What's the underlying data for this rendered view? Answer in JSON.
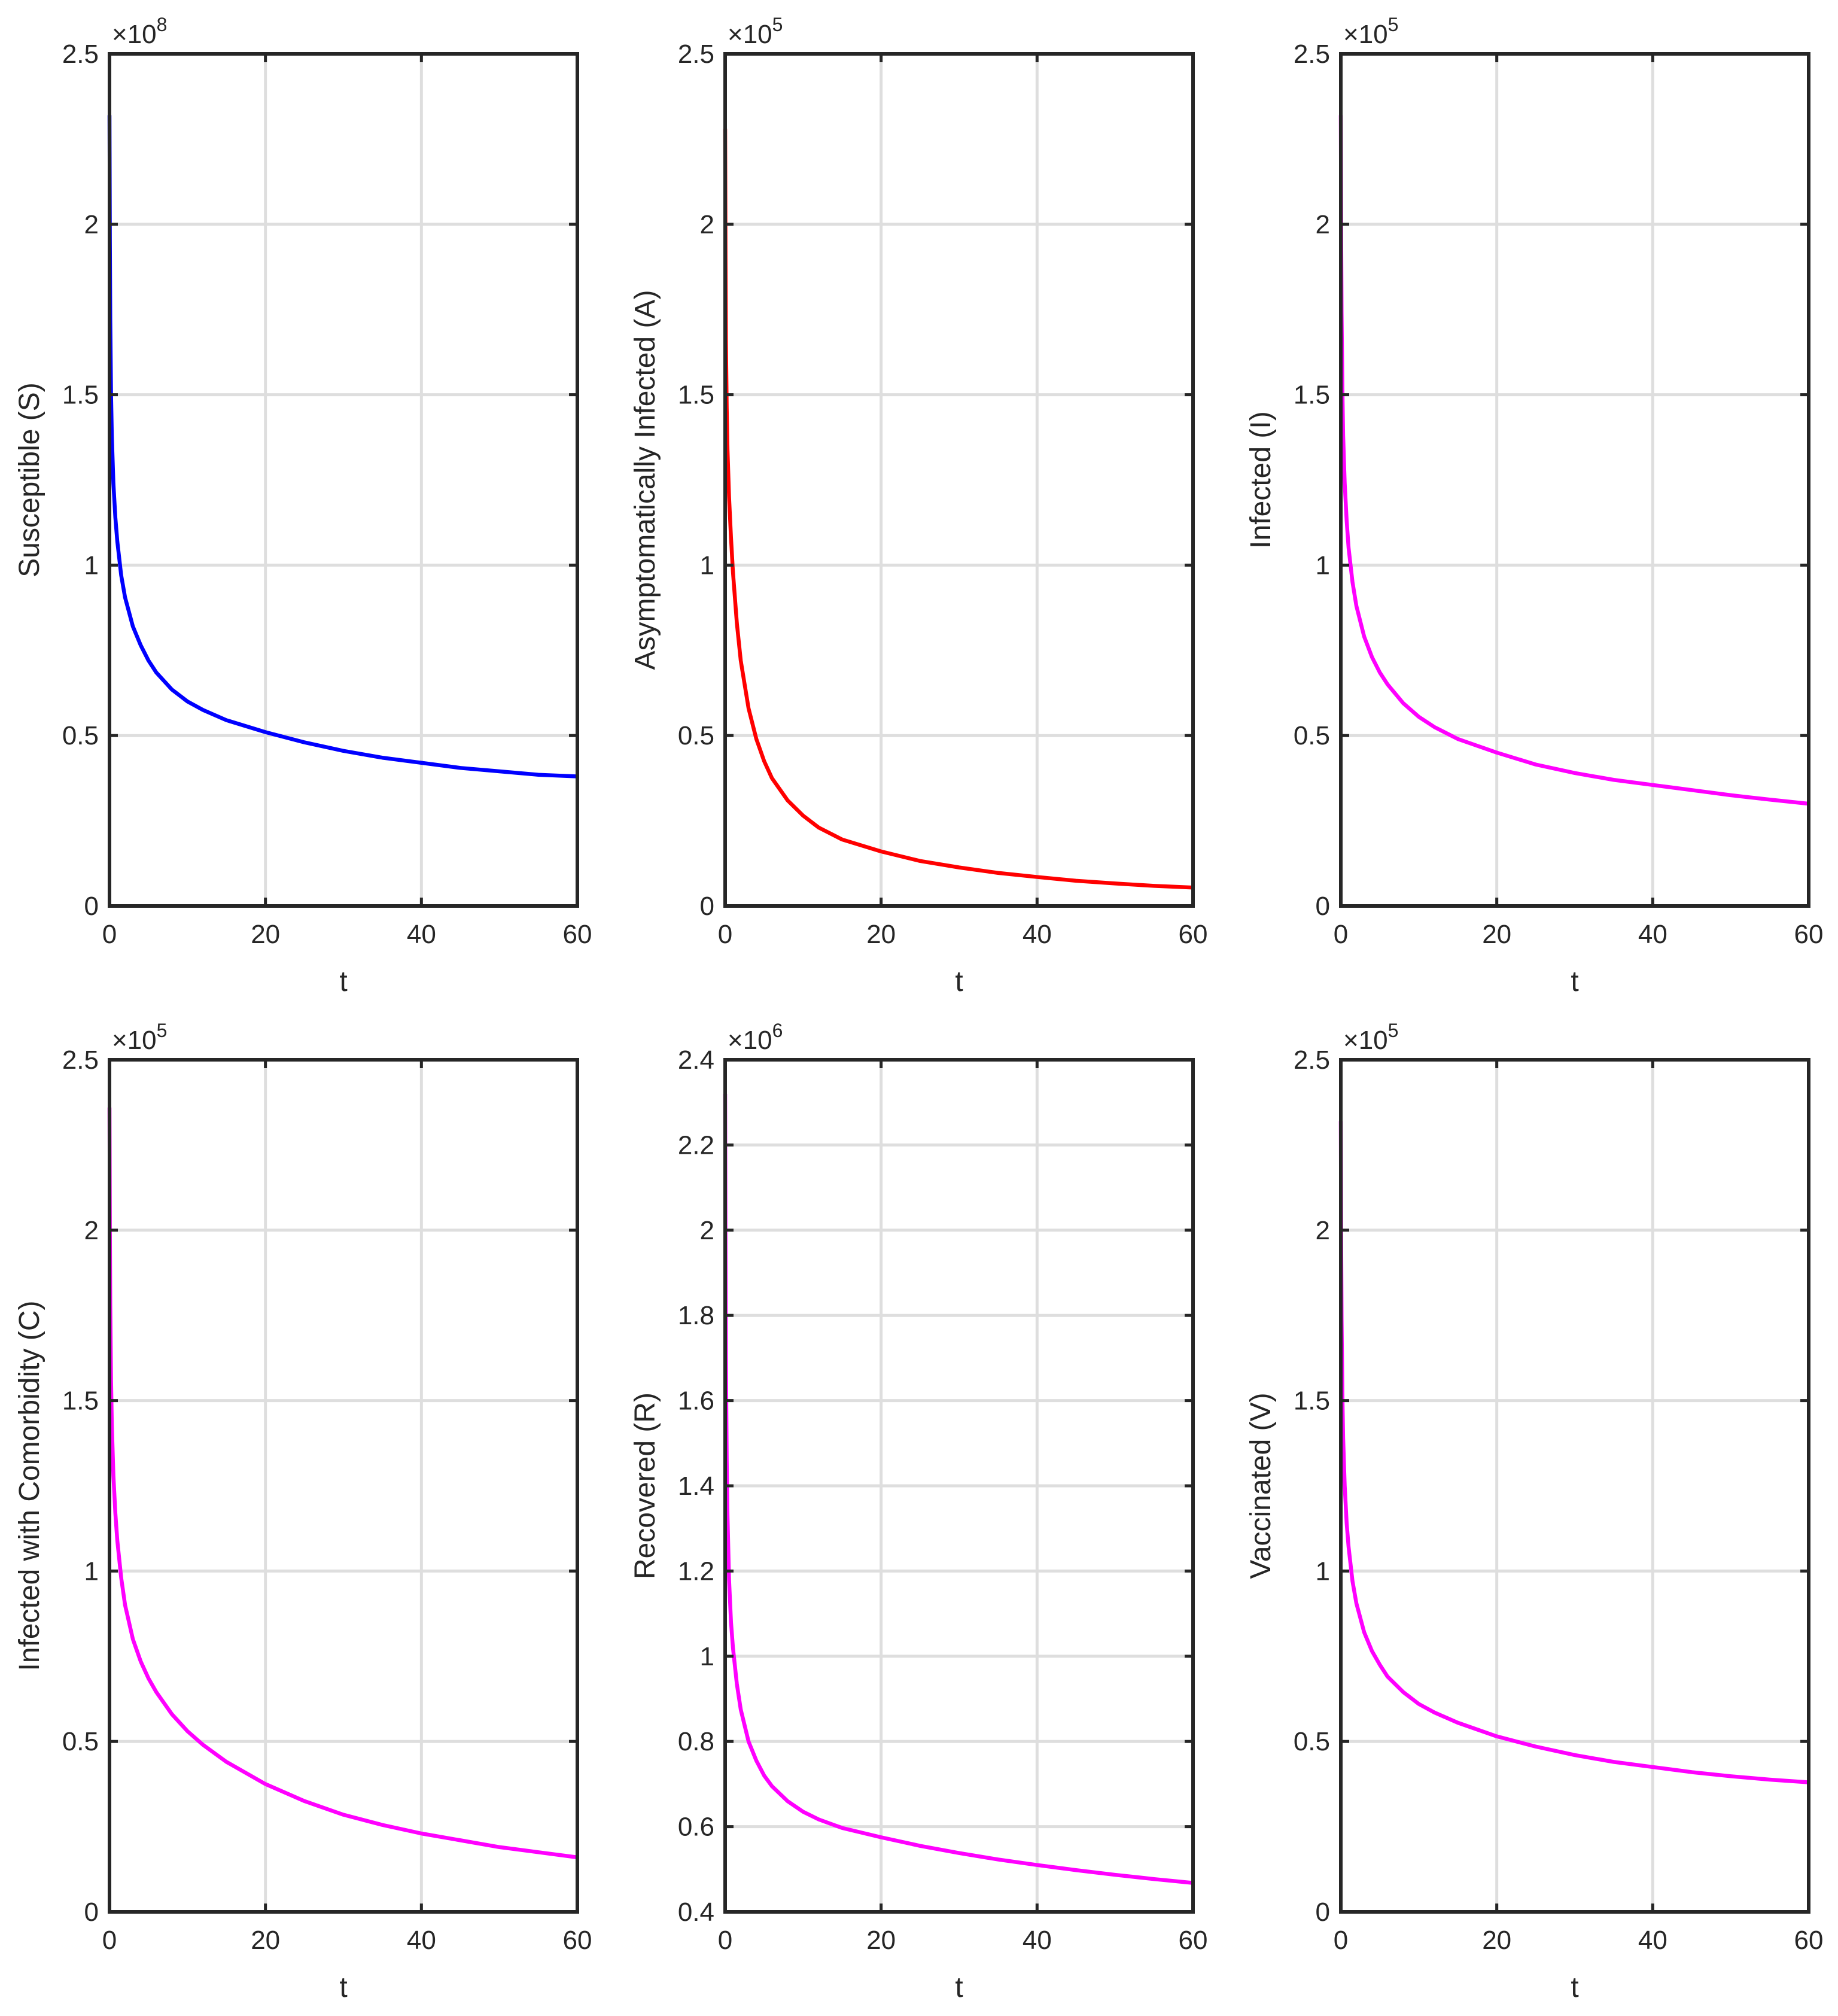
{
  "chart_data": [
    {
      "type": "line",
      "xlabel": "t",
      "ylabel": "Susceptible (S)",
      "multiplier": {
        "base": "×10",
        "exponent": "8"
      },
      "xlim": [
        0,
        60
      ],
      "ylim": [
        0,
        2.5
      ],
      "xticks": [
        0,
        20,
        40,
        60
      ],
      "xtick_labels": [
        "0",
        "20",
        "40",
        "60"
      ],
      "yticks": [
        0,
        0.5,
        1,
        1.5,
        2,
        2.5
      ],
      "ytick_labels": [
        "0",
        "0.5",
        "1",
        "1.5",
        "2",
        "2.5"
      ],
      "grid": true,
      "series": [
        {
          "name": "S",
          "color": "#0000ff",
          "x": [
            0,
            0.05,
            0.1,
            0.2,
            0.3,
            0.5,
            0.75,
            1,
            1.5,
            2,
            3,
            4,
            5,
            6,
            8,
            10,
            12,
            15,
            20,
            25,
            30,
            35,
            40,
            45,
            50,
            55,
            60
          ],
          "y": [
            2.32,
            1.95,
            1.72,
            1.5,
            1.38,
            1.24,
            1.14,
            1.07,
            0.97,
            0.905,
            0.82,
            0.765,
            0.72,
            0.685,
            0.635,
            0.6,
            0.575,
            0.545,
            0.51,
            0.48,
            0.455,
            0.435,
            0.42,
            0.405,
            0.395,
            0.385,
            0.38
          ]
        }
      ]
    },
    {
      "type": "line",
      "xlabel": "t",
      "ylabel": "Asymptomatically Infected (A)",
      "multiplier": {
        "base": "×10",
        "exponent": "5"
      },
      "xlim": [
        0,
        60
      ],
      "ylim": [
        0,
        2.5
      ],
      "xticks": [
        0,
        20,
        40,
        60
      ],
      "xtick_labels": [
        "0",
        "20",
        "40",
        "60"
      ],
      "yticks": [
        0,
        0.5,
        1,
        1.5,
        2,
        2.5
      ],
      "ytick_labels": [
        "0",
        "0.5",
        "1",
        "1.5",
        "2",
        "2.5"
      ],
      "grid": true,
      "series": [
        {
          "name": "A",
          "color": "#ff0000",
          "x": [
            0,
            0.05,
            0.1,
            0.2,
            0.3,
            0.5,
            0.75,
            1,
            1.5,
            2,
            3,
            4,
            5,
            6,
            8,
            10,
            12,
            15,
            20,
            25,
            30,
            35,
            40,
            45,
            50,
            55,
            60
          ],
          "y": [
            2.28,
            1.9,
            1.66,
            1.46,
            1.34,
            1.2,
            1.08,
            0.98,
            0.83,
            0.72,
            0.58,
            0.49,
            0.425,
            0.375,
            0.31,
            0.265,
            0.23,
            0.195,
            0.16,
            0.132,
            0.113,
            0.097,
            0.085,
            0.074,
            0.066,
            0.059,
            0.054
          ]
        }
      ]
    },
    {
      "type": "line",
      "xlabel": "t",
      "ylabel": "Infected (I)",
      "multiplier": {
        "base": "×10",
        "exponent": "5"
      },
      "xlim": [
        0,
        60
      ],
      "ylim": [
        0,
        2.5
      ],
      "xticks": [
        0,
        20,
        40,
        60
      ],
      "xtick_labels": [
        "0",
        "20",
        "40",
        "60"
      ],
      "yticks": [
        0,
        0.5,
        1,
        1.5,
        2,
        2.5
      ],
      "ytick_labels": [
        "0",
        "0.5",
        "1",
        "1.5",
        "2",
        "2.5"
      ],
      "grid": true,
      "series": [
        {
          "name": "I",
          "color": "#ff00ff",
          "x": [
            0,
            0.05,
            0.1,
            0.2,
            0.3,
            0.5,
            0.75,
            1,
            1.5,
            2,
            3,
            4,
            5,
            6,
            8,
            10,
            12,
            15,
            20,
            25,
            30,
            35,
            40,
            45,
            50,
            55,
            60
          ],
          "y": [
            2.32,
            1.96,
            1.74,
            1.52,
            1.38,
            1.24,
            1.13,
            1.05,
            0.95,
            0.88,
            0.79,
            0.73,
            0.685,
            0.65,
            0.595,
            0.555,
            0.525,
            0.49,
            0.45,
            0.415,
            0.39,
            0.37,
            0.355,
            0.34,
            0.325,
            0.312,
            0.3
          ]
        }
      ]
    },
    {
      "type": "line",
      "xlabel": "t",
      "ylabel": "Infected with Comorbidity (C)",
      "multiplier": {
        "base": "×10",
        "exponent": "5"
      },
      "xlim": [
        0,
        60
      ],
      "ylim": [
        0,
        2.5
      ],
      "xticks": [
        0,
        20,
        40,
        60
      ],
      "xtick_labels": [
        "0",
        "20",
        "40",
        "60"
      ],
      "yticks": [
        0,
        0.5,
        1,
        1.5,
        2,
        2.5
      ],
      "ytick_labels": [
        "0",
        "0.5",
        "1",
        "1.5",
        "2",
        "2.5"
      ],
      "grid": true,
      "series": [
        {
          "name": "C",
          "color": "#ff00ff",
          "x": [
            0,
            0.05,
            0.1,
            0.2,
            0.3,
            0.5,
            0.75,
            1,
            1.5,
            2,
            3,
            4,
            5,
            6,
            8,
            10,
            12,
            15,
            20,
            25,
            30,
            35,
            40,
            45,
            50,
            55,
            60
          ],
          "y": [
            2.36,
            2.0,
            1.78,
            1.56,
            1.43,
            1.28,
            1.17,
            1.09,
            0.98,
            0.9,
            0.8,
            0.735,
            0.685,
            0.645,
            0.58,
            0.53,
            0.49,
            0.44,
            0.375,
            0.325,
            0.285,
            0.255,
            0.23,
            0.21,
            0.19,
            0.175,
            0.16
          ]
        }
      ]
    },
    {
      "type": "line",
      "xlabel": "t",
      "ylabel": "Recovered (R)",
      "multiplier": {
        "base": "×10",
        "exponent": "6"
      },
      "xlim": [
        0,
        60
      ],
      "ylim": [
        0.4,
        2.4
      ],
      "xticks": [
        0,
        20,
        40,
        60
      ],
      "xtick_labels": [
        "0",
        "20",
        "40",
        "60"
      ],
      "yticks": [
        0.4,
        0.6,
        0.8,
        1,
        1.2,
        1.4,
        1.6,
        1.8,
        2,
        2.2,
        2.4
      ],
      "ytick_labels": [
        "0.4",
        "0.6",
        "0.8",
        "1",
        "1.2",
        "1.4",
        "1.6",
        "1.8",
        "2",
        "2.2",
        "2.4"
      ],
      "grid": true,
      "series": [
        {
          "name": "R",
          "color": "#ff00ff",
          "x": [
            0,
            0.05,
            0.1,
            0.2,
            0.3,
            0.5,
            0.75,
            1,
            1.5,
            2,
            3,
            4,
            5,
            6,
            8,
            10,
            12,
            15,
            20,
            25,
            30,
            35,
            40,
            45,
            50,
            55,
            60
          ],
          "y": [
            2.32,
            1.95,
            1.7,
            1.46,
            1.33,
            1.18,
            1.08,
            1.02,
            0.935,
            0.875,
            0.8,
            0.755,
            0.72,
            0.695,
            0.66,
            0.635,
            0.617,
            0.597,
            0.575,
            0.555,
            0.538,
            0.523,
            0.51,
            0.498,
            0.487,
            0.477,
            0.468
          ]
        }
      ]
    },
    {
      "type": "line",
      "xlabel": "t",
      "ylabel": "Vaccinated (V)",
      "multiplier": {
        "base": "×10",
        "exponent": "5"
      },
      "xlim": [
        0,
        60
      ],
      "ylim": [
        0,
        2.5
      ],
      "xticks": [
        0,
        20,
        40,
        60
      ],
      "xtick_labels": [
        "0",
        "20",
        "40",
        "60"
      ],
      "yticks": [
        0,
        0.5,
        1,
        1.5,
        2,
        2.5
      ],
      "ytick_labels": [
        "0",
        "0.5",
        "1",
        "1.5",
        "2",
        "2.5"
      ],
      "grid": true,
      "series": [
        {
          "name": "V",
          "color": "#ff00ff",
          "x": [
            0,
            0.05,
            0.1,
            0.2,
            0.3,
            0.5,
            0.75,
            1,
            1.5,
            2,
            3,
            4,
            5,
            6,
            8,
            10,
            12,
            15,
            20,
            25,
            30,
            35,
            40,
            45,
            50,
            55,
            60
          ],
          "y": [
            2.32,
            1.96,
            1.74,
            1.52,
            1.39,
            1.25,
            1.14,
            1.07,
            0.97,
            0.905,
            0.82,
            0.765,
            0.725,
            0.69,
            0.645,
            0.61,
            0.585,
            0.555,
            0.515,
            0.485,
            0.46,
            0.44,
            0.425,
            0.41,
            0.398,
            0.388,
            0.38
          ]
        }
      ]
    }
  ]
}
